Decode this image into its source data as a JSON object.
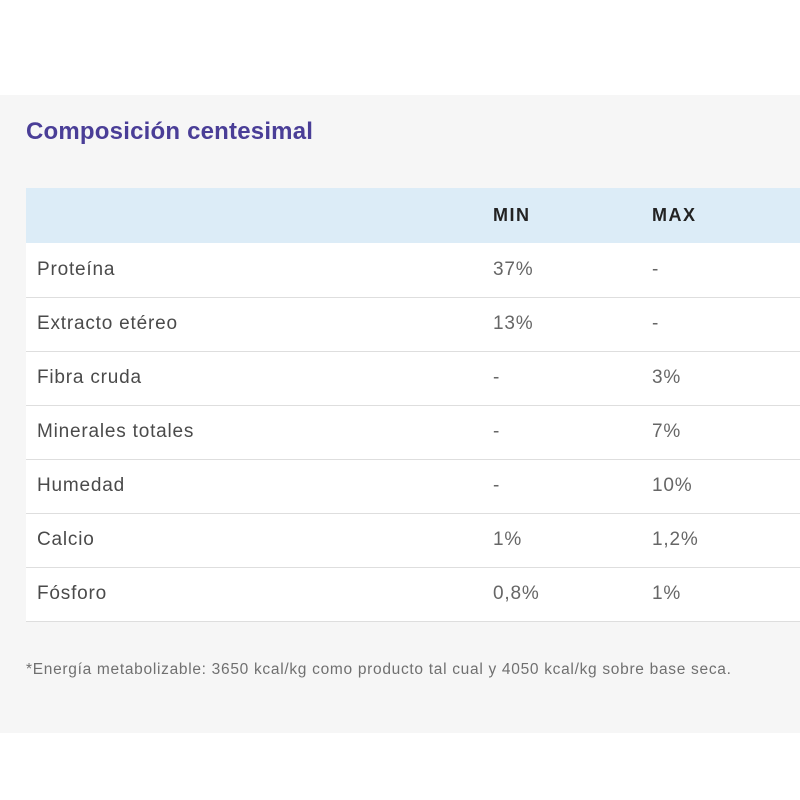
{
  "section": {
    "title": "Composición centesimal"
  },
  "table": {
    "headers": {
      "name": "",
      "min": "MIN",
      "max": "MAX"
    },
    "rows": [
      {
        "name": "Proteína",
        "min": "37%",
        "max": "-"
      },
      {
        "name": "Extracto etéreo",
        "min": "13%",
        "max": "-"
      },
      {
        "name": "Fibra cruda",
        "min": "-",
        "max": "3%"
      },
      {
        "name": "Minerales totales",
        "min": "-",
        "max": "7%"
      },
      {
        "name": "Humedad",
        "min": "-",
        "max": "10%"
      },
      {
        "name": "Calcio",
        "min": "1%",
        "max": "1,2%"
      },
      {
        "name": "Fósforo",
        "min": "0,8%",
        "max": "1%"
      }
    ]
  },
  "footnote": "*Energía metabolizable: 3650 kcal/kg como producto tal cual y 4050 kcal/kg sobre base seca.",
  "colors": {
    "title": "#4a3e97",
    "header_bg": "#dcecf7",
    "panel_bg": "#f6f6f6"
  }
}
